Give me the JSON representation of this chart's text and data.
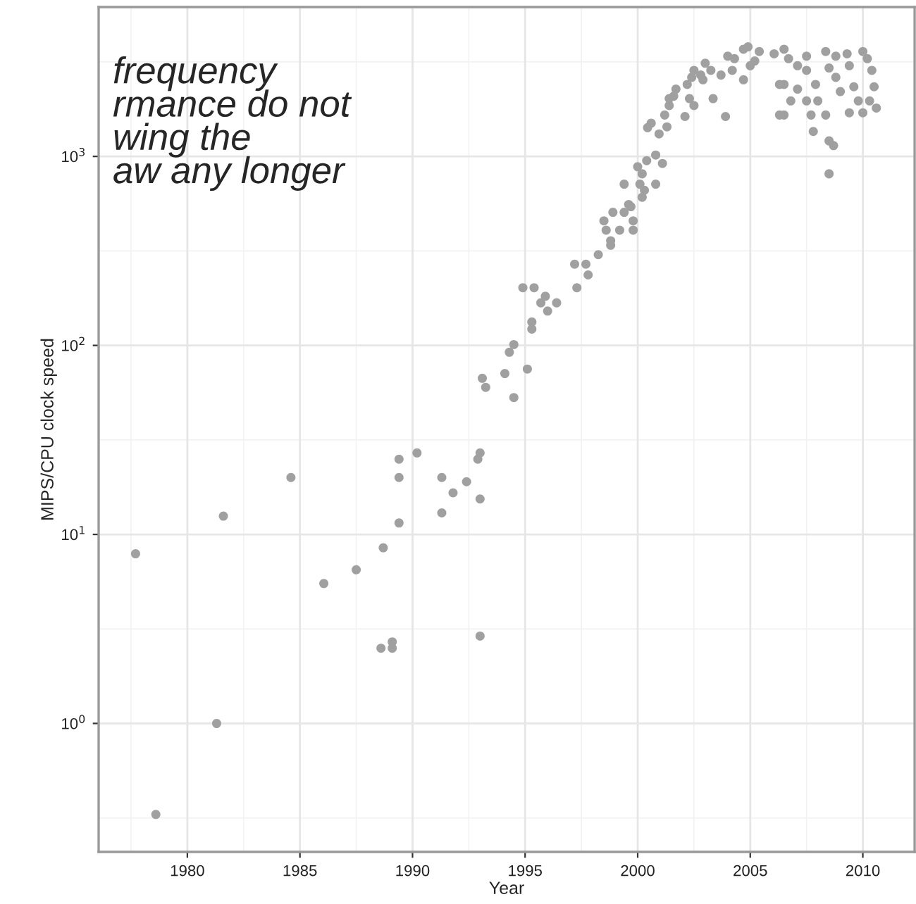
{
  "chart_data": {
    "type": "scatter",
    "xlabel": "Year",
    "ylabel": "MIPS/CPU clock speed",
    "log": "y",
    "grid": true,
    "marker": "circle",
    "xlim": [
      1976.06,
      2012.3
    ],
    "ylim": [
      0.209,
      6170
    ],
    "xticks": [
      1980,
      1985,
      1990,
      1995,
      2000,
      2005,
      2010
    ],
    "yticks": [
      {
        "value": 1,
        "label": "10$^{0}$"
      },
      {
        "value": 10,
        "label": "10$^{1}$"
      },
      {
        "value": 100,
        "label": "10$^{2}$"
      },
      {
        "value": 1000,
        "label": "10$^{3}$"
      }
    ],
    "annotations": [
      "frequency\nrmance do not\nwing the\naw any longer"
    ],
    "series": [
      {
        "color": "#a0a0a0",
        "x": [
          1977.7,
          1978.6,
          1981.3,
          1981.6,
          1986.06,
          1987.5,
          1988.7,
          1988.6,
          1989.1,
          1989.1,
          1989.4,
          1989.4,
          1989.4,
          1990.2,
          1991.3,
          1991.3,
          1991.8,
          1984.6,
          1992.4,
          1993.0,
          1992.9,
          1993.0,
          1993.0,
          1994.5,
          1995.1,
          1994.1,
          1993.1,
          1993.25,
          1994.3,
          1994.5,
          1995.3,
          1995.3,
          1994.9,
          1995.4,
          1995.7,
          1995.9,
          1996.0,
          1996.4,
          1997.3,
          1997.2,
          1997.7,
          1997.8,
          1998.25,
          1998.8,
          1998.8,
          1998.6,
          1999.2,
          1999.8,
          1998.5,
          1998.9,
          1999.4,
          1999.8,
          1999.6,
          1999.7,
          2000.2,
          1999.4,
          2000.1,
          2000.3,
          2000.8,
          2000.0,
          2000.2,
          2000.4,
          2000.8,
          2001.1,
          2000.44,
          2000.6,
          2000.95,
          2001.3,
          2001.2,
          2001.4,
          2001.6,
          2001.4,
          2001.7,
          2002.1,
          2002.3,
          2002.5,
          2002.2,
          2002.4,
          2002.5,
          2002.8,
          2003.0,
          2003.25,
          2003.35,
          2003.9,
          2003.7,
          2004.0,
          2004.3,
          2004.7,
          2004.7,
          2004.9,
          2005.2,
          2005.4,
          2006.06,
          2006.5,
          2006.5,
          2006.5,
          2006.8,
          2007.1,
          2007.5,
          2007.7,
          2007.8,
          2008.0,
          2008.35,
          2008.5,
          2008.7,
          2008.5,
          2008.5,
          2008.8,
          2009.0,
          2009.3,
          2009.4,
          2009.6,
          2009.8,
          2010.0,
          2010.2,
          2010.4,
          2010.5,
          2010.6,
          2010.3,
          2010.0,
          2008.35,
          2007.9,
          2007.1,
          2007.5,
          2008.8,
          2006.3,
          2006.7,
          2006.3,
          2007.5,
          2009.4,
          2004.2,
          2005.0,
          2002.9
        ],
        "values": [
          7.9,
          0.33,
          1.0,
          12.5,
          5.5,
          6.5,
          8.5,
          2.5,
          2.5,
          2.7,
          11.5,
          20,
          25,
          27,
          20,
          13,
          16.6,
          20,
          19,
          15.4,
          25,
          27,
          2.9,
          53,
          75,
          71,
          67,
          60,
          92,
          101,
          133,
          122,
          202,
          202,
          168,
          182,
          152,
          168,
          202,
          269,
          269,
          236,
          302,
          339,
          358,
          407,
          407,
          407,
          456,
          506,
          506,
          456,
          557,
          542,
          608,
          713,
          713,
          662,
          713,
          882,
          809,
          950,
          1017,
          918,
          1420,
          1500,
          1316,
          1434,
          1656,
          1858,
          2083,
          2023,
          2270,
          1626,
          2023,
          1858,
          2404,
          2620,
          2853,
          2694,
          3112,
          2853,
          2023,
          1626,
          2694,
          3390,
          3290,
          2543,
          3690,
          3800,
          3200,
          3590,
          3490,
          3690,
          2404,
          1656,
          1967,
          2270,
          3390,
          1656,
          1355,
          1967,
          1656,
          2937,
          1141,
          1208,
          809,
          3390,
          2203,
          3490,
          1702,
          2336,
          1967,
          1702,
          3290,
          2853,
          2336,
          1803,
          1967,
          3590,
          3590,
          2404,
          3020,
          2853,
          2620,
          2404,
          3290,
          1656,
          1967,
          3020,
          2853,
          3020,
          2543
        ]
      }
    ]
  }
}
